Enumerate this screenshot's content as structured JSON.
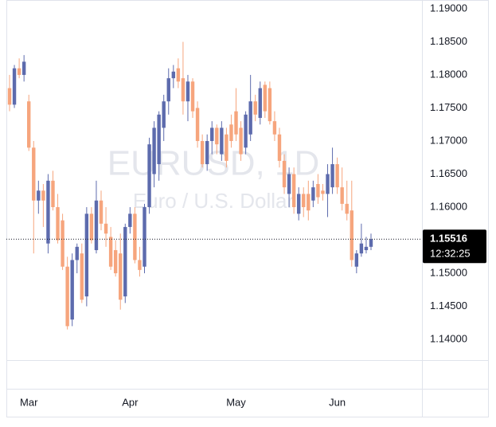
{
  "chart_data": {
    "type": "candlestick",
    "watermark": "EURUSD, 1D",
    "watermark_subtitle": "Euro / U.S. Dollar",
    "categories": [
      null,
      null,
      null,
      null,
      "Mar",
      null,
      null,
      null,
      null,
      null,
      null,
      null,
      null,
      null,
      null,
      null,
      null,
      null,
      null,
      null,
      null,
      null,
      null,
      null,
      null,
      "Apr",
      null,
      null,
      null,
      null,
      null,
      null,
      null,
      null,
      null,
      null,
      null,
      null,
      null,
      null,
      null,
      null,
      null,
      null,
      null,
      null,
      null,
      "May",
      null,
      null,
      null,
      null,
      null,
      null,
      null,
      null,
      null,
      null,
      null,
      null,
      null,
      null,
      null,
      null,
      null,
      null,
      null,
      null,
      "Jun",
      null,
      null,
      null,
      null,
      null,
      null,
      null
    ],
    "open": [
      1.178,
      1.1755,
      1.181,
      1.18,
      1.176,
      1.169,
      1.161,
      1.1625,
      1.1545,
      1.164,
      1.16,
      1.158,
      1.151,
      1.143,
      1.152,
      1.153,
      1.1465,
      1.159,
      1.1535,
      1.161,
      1.1575,
      1.1555,
      1.1535,
      1.153,
      1.1465,
      1.157,
      1.159,
      1.152,
      1.151,
      1.16,
      1.165,
      1.1665,
      1.172,
      1.176,
      1.1795,
      1.181,
      1.1795,
      1.176,
      1.179,
      1.175,
      1.17,
      1.1665,
      1.17,
      1.172,
      1.168,
      1.171,
      1.1725,
      1.1745,
      1.172,
      1.169,
      1.171,
      1.176,
      1.1735,
      1.1785,
      1.178,
      1.173,
      1.171,
      1.167,
      1.162,
      1.165,
      1.159,
      1.162,
      1.162,
      1.161,
      1.1635,
      1.1625,
      1.162,
      1.163,
      1.1665,
      1.163,
      1.1605,
      1.1595,
      1.151,
      1.153,
      1.1535,
      1.154
    ],
    "high": [
      1.18,
      1.1815,
      1.1825,
      1.183,
      1.177,
      1.17,
      1.164,
      1.1635,
      1.165,
      1.1655,
      1.162,
      1.159,
      1.1525,
      1.153,
      1.1545,
      1.1545,
      1.16,
      1.16,
      1.164,
      1.1625,
      1.16,
      1.157,
      1.155,
      1.156,
      1.1575,
      1.16,
      1.16,
      1.154,
      1.1605,
      1.1705,
      1.173,
      1.1745,
      1.177,
      1.181,
      1.1815,
      1.1825,
      1.185,
      1.18,
      1.1795,
      1.176,
      1.171,
      1.171,
      1.173,
      1.1725,
      1.173,
      1.172,
      1.174,
      1.178,
      1.173,
      1.1745,
      1.18,
      1.177,
      1.179,
      1.179,
      1.179,
      1.1745,
      1.172,
      1.168,
      1.166,
      1.166,
      1.163,
      1.163,
      1.164,
      1.164,
      1.165,
      1.1635,
      1.1665,
      1.169,
      1.1675,
      1.166,
      1.164,
      1.164,
      1.1535,
      1.1575,
      1.1555,
      1.156
    ],
    "low": [
      1.1745,
      1.175,
      1.1795,
      1.179,
      1.1685,
      1.153,
      1.159,
      1.157,
      1.153,
      1.1595,
      1.1545,
      1.1505,
      1.1415,
      1.142,
      1.15,
      1.1455,
      1.145,
      1.1545,
      1.153,
      1.1565,
      1.154,
      1.1505,
      1.1495,
      1.1445,
      1.1455,
      1.156,
      1.1515,
      1.1495,
      1.15,
      1.159,
      1.163,
      1.164,
      1.17,
      1.174,
      1.178,
      1.178,
      1.174,
      1.173,
      1.1735,
      1.169,
      1.166,
      1.1655,
      1.168,
      1.168,
      1.167,
      1.166,
      1.169,
      1.17,
      1.167,
      1.168,
      1.17,
      1.173,
      1.1725,
      1.1735,
      1.1725,
      1.17,
      1.166,
      1.162,
      1.16,
      1.159,
      1.158,
      1.1585,
      1.158,
      1.16,
      1.1605,
      1.161,
      1.1585,
      1.162,
      1.162,
      1.1595,
      1.158,
      1.151,
      1.15,
      1.1525,
      1.153,
      1.1535
    ],
    "close": [
      1.1755,
      1.181,
      1.18,
      1.182,
      1.169,
      1.161,
      1.1625,
      1.161,
      1.164,
      1.16,
      1.155,
      1.151,
      1.142,
      1.152,
      1.154,
      1.146,
      1.159,
      1.155,
      1.161,
      1.1575,
      1.156,
      1.151,
      1.15,
      1.146,
      1.157,
      1.159,
      1.152,
      1.1505,
      1.16,
      1.1695,
      1.172,
      1.174,
      1.176,
      1.1795,
      1.1805,
      1.179,
      1.176,
      1.179,
      1.1745,
      1.17,
      1.1665,
      1.17,
      1.172,
      1.1695,
      1.172,
      1.167,
      1.17,
      1.171,
      1.168,
      1.174,
      1.176,
      1.174,
      1.178,
      1.1745,
      1.173,
      1.171,
      1.167,
      1.163,
      1.165,
      1.16,
      1.162,
      1.16,
      1.1595,
      1.163,
      1.1615,
      1.162,
      1.165,
      1.1665,
      1.163,
      1.1605,
      1.159,
      1.152,
      1.153,
      1.1545,
      1.154,
      1.15516
    ],
    "up_color": "#5d6bad",
    "down_color": "#f6a57d",
    "last_price": 1.15516,
    "countdown": "12:32:25",
    "ylim": [
      1.13687,
      1.19133
    ],
    "yticks": [
      {
        "value": 1.14,
        "label": "1.14000"
      },
      {
        "value": 1.145,
        "label": "1.14500"
      },
      {
        "value": 1.15,
        "label": "1.15000"
      },
      {
        "value": 1.155,
        "label": "1.15500"
      },
      {
        "value": 1.16,
        "label": "1.16000"
      },
      {
        "value": 1.165,
        "label": "1.16500"
      },
      {
        "value": 1.17,
        "label": "1.17000"
      },
      {
        "value": 1.175,
        "label": "1.17500"
      },
      {
        "value": 1.18,
        "label": "1.18000"
      },
      {
        "value": 1.185,
        "label": "1.18500"
      },
      {
        "value": 1.19,
        "label": "1.19000"
      }
    ],
    "grid": false
  }
}
